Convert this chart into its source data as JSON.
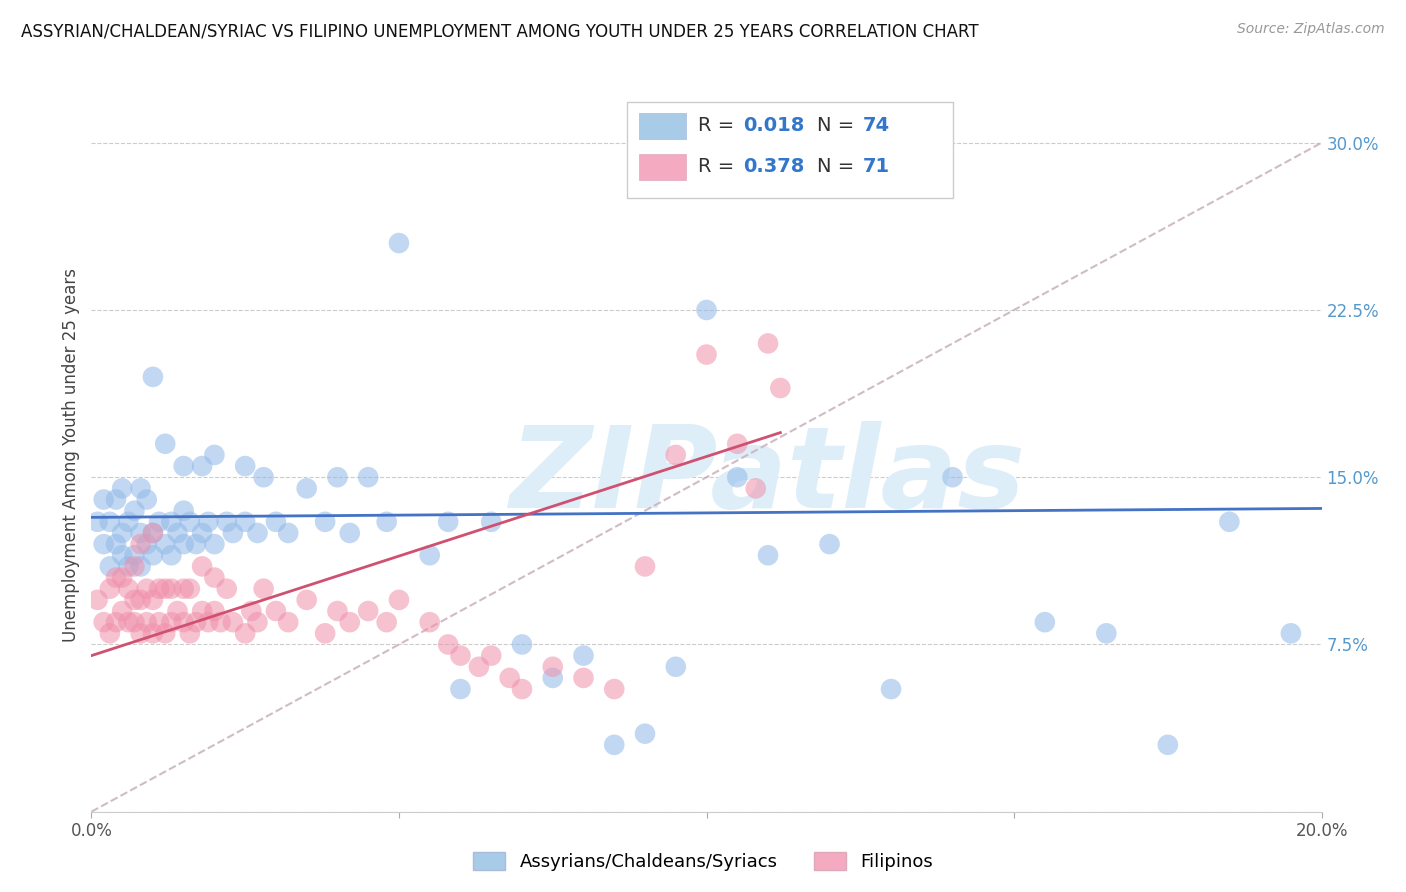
{
  "title": "ASSYRIAN/CHALDEAN/SYRIAC VS FILIPINO UNEMPLOYMENT AMONG YOUTH UNDER 25 YEARS CORRELATION CHART",
  "source": "Source: ZipAtlas.com",
  "ylabel": "Unemployment Among Youth under 25 years",
  "xlim": [
    0.0,
    0.2
  ],
  "ylim": [
    0.0,
    0.32
  ],
  "xticks": [
    0.0,
    0.05,
    0.1,
    0.15,
    0.2
  ],
  "xticklabels": [
    "0.0%",
    "",
    "",
    "",
    "20.0%"
  ],
  "yticks": [
    0.0,
    0.075,
    0.15,
    0.225,
    0.3
  ],
  "yticklabels": [
    "",
    "7.5%",
    "15.0%",
    "22.5%",
    "30.0%"
  ],
  "R_blue": 0.018,
  "N_blue": 74,
  "R_pink": 0.378,
  "N_pink": 71,
  "scatter_color_blue": "#90b8e8",
  "scatter_color_pink": "#f090aa",
  "legend_color_blue": "#a8cce8",
  "legend_color_pink": "#f4aac0",
  "line_color_blue": "#4472c4",
  "line_color_pink": "#d05070",
  "diagonal_color": "#c8b0bc",
  "watermark": "ZIPatlas",
  "watermark_color": "#ddeef8",
  "grid_color": "#cccccc",
  "tick_color": "#5599cc",
  "background_color": "#ffffff",
  "blue_x": [
    0.001,
    0.002,
    0.002,
    0.003,
    0.003,
    0.004,
    0.004,
    0.005,
    0.005,
    0.005,
    0.006,
    0.006,
    0.007,
    0.007,
    0.008,
    0.008,
    0.008,
    0.009,
    0.009,
    0.01,
    0.01,
    0.01,
    0.011,
    0.012,
    0.012,
    0.013,
    0.013,
    0.014,
    0.015,
    0.015,
    0.015,
    0.016,
    0.017,
    0.018,
    0.018,
    0.019,
    0.02,
    0.02,
    0.022,
    0.023,
    0.025,
    0.025,
    0.027,
    0.028,
    0.03,
    0.032,
    0.035,
    0.038,
    0.04,
    0.042,
    0.045,
    0.048,
    0.05,
    0.055,
    0.058,
    0.06,
    0.065,
    0.07,
    0.075,
    0.08,
    0.085,
    0.09,
    0.095,
    0.1,
    0.105,
    0.11,
    0.12,
    0.13,
    0.14,
    0.155,
    0.165,
    0.175,
    0.185,
    0.195
  ],
  "blue_y": [
    0.13,
    0.12,
    0.14,
    0.11,
    0.13,
    0.12,
    0.14,
    0.115,
    0.125,
    0.145,
    0.11,
    0.13,
    0.115,
    0.135,
    0.11,
    0.125,
    0.145,
    0.12,
    0.14,
    0.115,
    0.125,
    0.195,
    0.13,
    0.12,
    0.165,
    0.115,
    0.13,
    0.125,
    0.12,
    0.135,
    0.155,
    0.13,
    0.12,
    0.125,
    0.155,
    0.13,
    0.12,
    0.16,
    0.13,
    0.125,
    0.13,
    0.155,
    0.125,
    0.15,
    0.13,
    0.125,
    0.145,
    0.13,
    0.15,
    0.125,
    0.15,
    0.13,
    0.255,
    0.115,
    0.13,
    0.055,
    0.13,
    0.075,
    0.06,
    0.07,
    0.03,
    0.035,
    0.065,
    0.225,
    0.15,
    0.115,
    0.12,
    0.055,
    0.15,
    0.085,
    0.08,
    0.03,
    0.13,
    0.08
  ],
  "pink_x": [
    0.001,
    0.002,
    0.003,
    0.003,
    0.004,
    0.004,
    0.005,
    0.005,
    0.006,
    0.006,
    0.007,
    0.007,
    0.007,
    0.008,
    0.008,
    0.008,
    0.009,
    0.009,
    0.01,
    0.01,
    0.01,
    0.011,
    0.011,
    0.012,
    0.012,
    0.013,
    0.013,
    0.014,
    0.015,
    0.015,
    0.016,
    0.016,
    0.017,
    0.018,
    0.018,
    0.019,
    0.02,
    0.02,
    0.021,
    0.022,
    0.023,
    0.025,
    0.026,
    0.027,
    0.028,
    0.03,
    0.032,
    0.035,
    0.038,
    0.04,
    0.042,
    0.045,
    0.048,
    0.05,
    0.055,
    0.058,
    0.06,
    0.063,
    0.065,
    0.068,
    0.07,
    0.075,
    0.08,
    0.085,
    0.09,
    0.095,
    0.1,
    0.105,
    0.108,
    0.11,
    0.112
  ],
  "pink_y": [
    0.095,
    0.085,
    0.08,
    0.1,
    0.085,
    0.105,
    0.09,
    0.105,
    0.085,
    0.1,
    0.085,
    0.095,
    0.11,
    0.08,
    0.095,
    0.12,
    0.085,
    0.1,
    0.08,
    0.095,
    0.125,
    0.085,
    0.1,
    0.08,
    0.1,
    0.085,
    0.1,
    0.09,
    0.085,
    0.1,
    0.08,
    0.1,
    0.085,
    0.09,
    0.11,
    0.085,
    0.09,
    0.105,
    0.085,
    0.1,
    0.085,
    0.08,
    0.09,
    0.085,
    0.1,
    0.09,
    0.085,
    0.095,
    0.08,
    0.09,
    0.085,
    0.09,
    0.085,
    0.095,
    0.085,
    0.075,
    0.07,
    0.065,
    0.07,
    0.06,
    0.055,
    0.065,
    0.06,
    0.055,
    0.11,
    0.16,
    0.205,
    0.165,
    0.145,
    0.21,
    0.19
  ],
  "blue_line_x": [
    0.0,
    0.2
  ],
  "blue_line_y": [
    0.132,
    0.136
  ],
  "pink_line_x": [
    0.0,
    0.112
  ],
  "pink_line_y": [
    0.07,
    0.17
  ]
}
